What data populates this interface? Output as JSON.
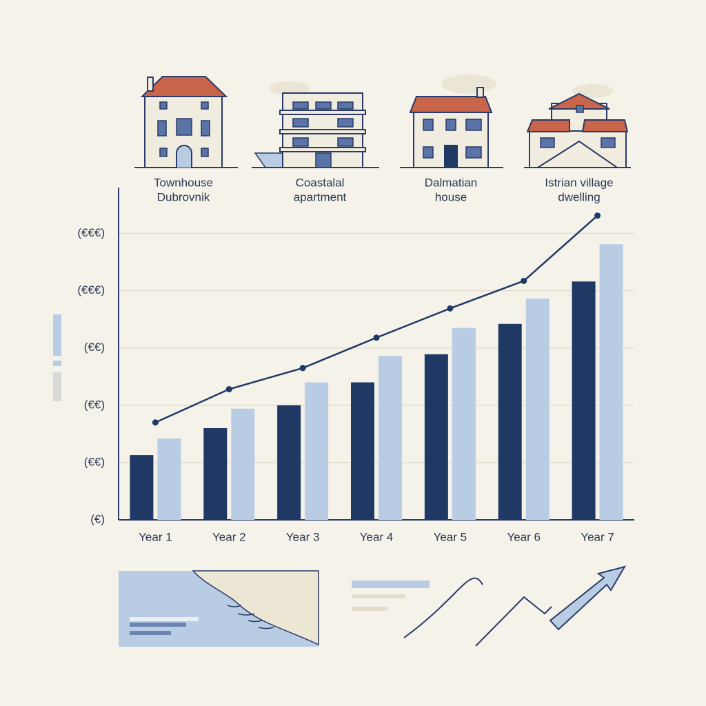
{
  "chart_data": {
    "type": "bar",
    "property_labels": [
      [
        "Townhouse",
        "Dubrovnik"
      ],
      [
        "Coastalal",
        "apartment"
      ],
      [
        "Dalmatian",
        "house"
      ],
      [
        "Istrian village",
        "dwelling"
      ]
    ],
    "categories": [
      "Year 1",
      "Year 2",
      "Year 3",
      "Year 4",
      "Year 5",
      "Year 6",
      "Year 7"
    ],
    "series": [
      {
        "type": "bar",
        "color": "#1f3864",
        "values": [
          1.13,
          1.6,
          2.0,
          2.4,
          2.89,
          3.42,
          4.16
        ]
      },
      {
        "type": "bar",
        "color": "#b8cce4",
        "values": [
          1.42,
          1.94,
          2.4,
          2.86,
          3.35,
          3.86,
          4.81
        ]
      },
      {
        "type": "line",
        "color": "#1f3864",
        "values": [
          1.7,
          2.28,
          2.65,
          3.18,
          3.69,
          4.17,
          5.31
        ]
      }
    ],
    "ylim": [
      0,
      5.8
    ],
    "yticks": [
      {
        "value": 0,
        "label": "(€)"
      },
      {
        "value": 1,
        "label": "(€€)"
      },
      {
        "value": 2,
        "label": "(€€)"
      },
      {
        "value": 3,
        "label": "(€€)"
      },
      {
        "value": 4,
        "label": "(€€€)"
      },
      {
        "value": 5,
        "label": "(€€€)"
      }
    ],
    "grid": true
  }
}
